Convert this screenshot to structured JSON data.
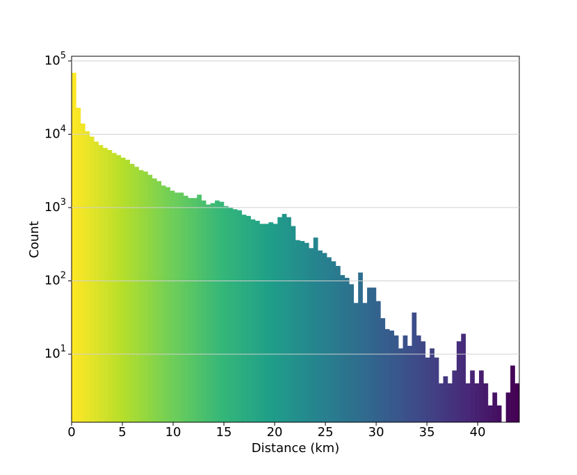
{
  "chart_data": {
    "type": "histogram",
    "xlabel": "Distance (km)",
    "ylabel": "Count",
    "bins": [
      0,
      0.441,
      0.882,
      1.323,
      1.764,
      2.205,
      2.646,
      3.087,
      3.528,
      3.969,
      4.41,
      4.851,
      5.292,
      5.733,
      6.174,
      6.615,
      7.056,
      7.497,
      7.938,
      8.379,
      8.82,
      9.261,
      9.702,
      10.143,
      10.584,
      11.025,
      11.466,
      11.907,
      12.348,
      12.789,
      13.23,
      13.671,
      14.112,
      14.553,
      14.994,
      15.435,
      15.876,
      16.317,
      16.758,
      17.199,
      17.64,
      18.081,
      18.522,
      18.963,
      19.404,
      19.845,
      20.286,
      20.727,
      21.168,
      21.609,
      22.05,
      22.491,
      22.932,
      23.373,
      23.814,
      24.255,
      24.696,
      25.137,
      25.578,
      26.019,
      26.46,
      26.901,
      27.342,
      27.783,
      28.224,
      28.665,
      29.106,
      29.547,
      29.988,
      30.429,
      30.87,
      31.311,
      31.752,
      32.193,
      32.634,
      33.075,
      33.516,
      33.957,
      34.398,
      34.839,
      35.28,
      35.721,
      36.162,
      36.603,
      37.044,
      37.485,
      37.926,
      38.367,
      38.808,
      39.249,
      39.69,
      40.131,
      40.572,
      41.013,
      41.454,
      41.895,
      42.336,
      42.777,
      43.218,
      43.659,
      44.1
    ],
    "counts": [
      69000,
      23000,
      14000,
      11000,
      9300,
      7950,
      7130,
      6530,
      6100,
      5560,
      5200,
      4800,
      4500,
      3950,
      3600,
      3250,
      3100,
      2800,
      2500,
      2300,
      2000,
      1900,
      1700,
      1600,
      1600,
      1450,
      1350,
      1350,
      1500,
      1250,
      1100,
      1150,
      1250,
      1200,
      1050,
      1000,
      950,
      920,
      800,
      770,
      690,
      660,
      600,
      600,
      630,
      600,
      740,
      820,
      740,
      560,
      360,
      350,
      330,
      280,
      390,
      260,
      240,
      210,
      185,
      160,
      120,
      110,
      90,
      50,
      130,
      50,
      81,
      81,
      53,
      31,
      22,
      21,
      18,
      12,
      18,
      13,
      37,
      18,
      15,
      9,
      12,
      9,
      4,
      5,
      4,
      6,
      15,
      19,
      4,
      6,
      4,
      6,
      4,
      2,
      3,
      2,
      1,
      3,
      7,
      4
    ],
    "colormap": "viridis_r",
    "xlim": [
      0,
      44.1
    ],
    "ylim": [
      1.18,
      116000
    ],
    "yscale": "log",
    "xticks": [
      0,
      5,
      10,
      15,
      20,
      25,
      30,
      35,
      40
    ],
    "yticks": [
      {
        "value": 10,
        "label": "10^1"
      },
      {
        "value": 100,
        "label": "10^2"
      },
      {
        "value": 1000,
        "label": "10^3"
      },
      {
        "value": 10000,
        "label": "10^4"
      },
      {
        "value": 100000,
        "label": "10^5"
      }
    ],
    "grid": true
  }
}
